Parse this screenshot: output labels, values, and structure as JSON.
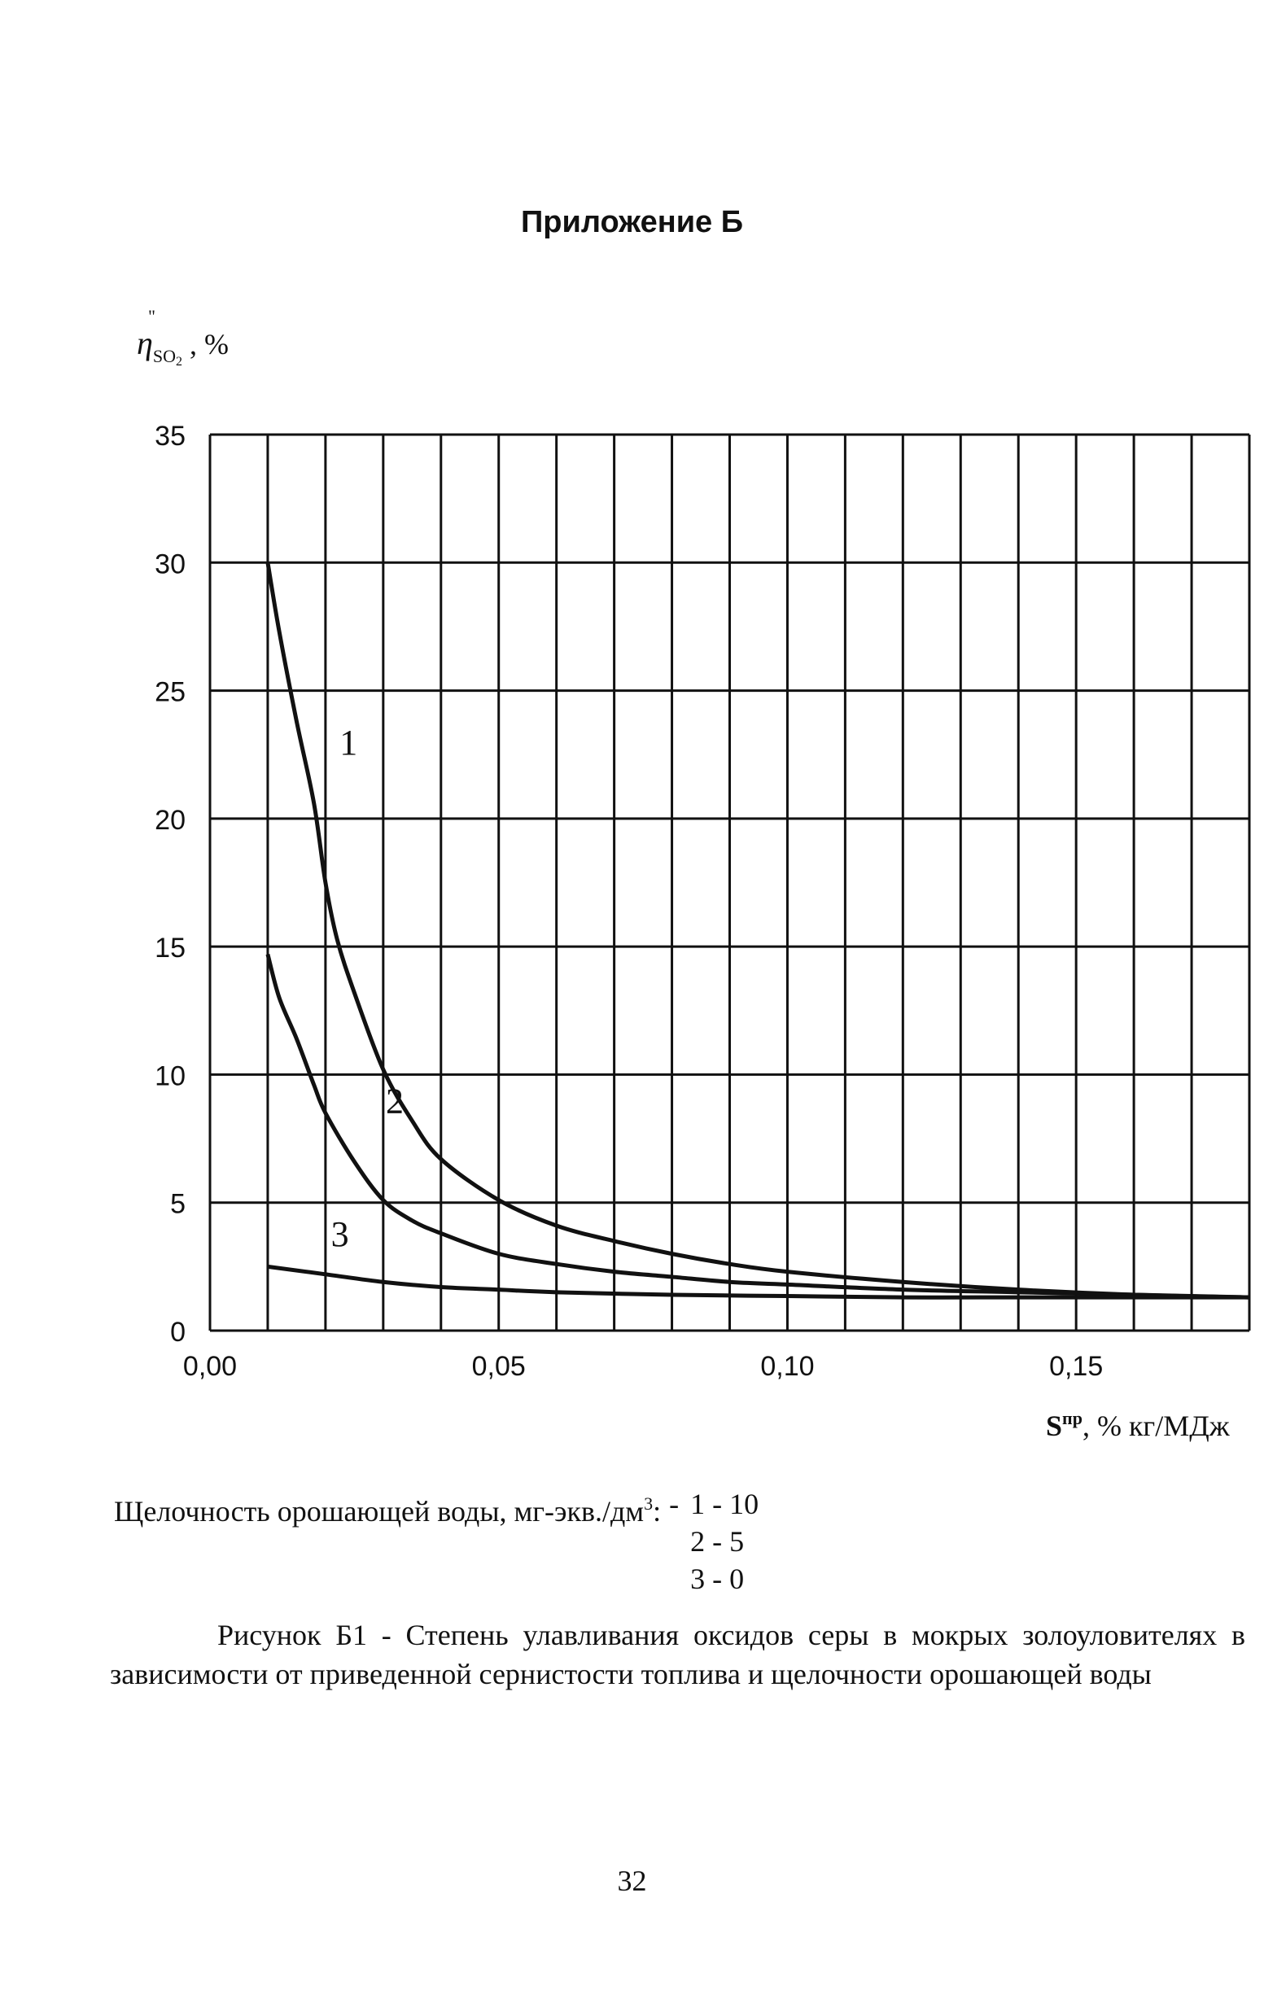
{
  "page": {
    "appendix_title": "Приложение Б",
    "y_axis": {
      "symbol": "η",
      "accent": "\"",
      "subscript": "SO",
      "subscript_index": "2",
      "suffix": " , %"
    },
    "x_axis": {
      "symbol": "S",
      "superscript": "пр",
      "suffix": ", % кг/МДж"
    },
    "legend": {
      "title": "Щелочность орошающей воды, мг-экв./дм",
      "title_superscript": "3",
      "title_colon": ":",
      "dash": "-",
      "entries": [
        "1 - 10",
        "2 - 5",
        "3 - 0"
      ]
    },
    "caption": "Рисунок Б1 - Степень улавливания оксидов серы в мокрых золоуловителях в зависимости от приведенной сернистости топлива и щелочности орошающей воды",
    "page_number": "32"
  },
  "chart_data": {
    "type": "line",
    "xlim": [
      0.0,
      0.18
    ],
    "ylim": [
      0,
      35
    ],
    "x_ticks": [
      0.0,
      0.05,
      0.1,
      0.15
    ],
    "x_tick_labels": [
      "0,00",
      "0,05",
      "0,10",
      "0,15"
    ],
    "y_ticks": [
      0,
      5,
      10,
      15,
      20,
      25,
      30,
      35
    ],
    "y_tick_labels": [
      "0",
      "5",
      "10",
      "15",
      "20",
      "25",
      "30",
      "35"
    ],
    "grid": true,
    "x_grid_step": 0.01,
    "y_grid_step": 5,
    "series": [
      {
        "name": "1",
        "x": [
          0.01,
          0.012,
          0.015,
          0.018,
          0.02,
          0.022,
          0.025,
          0.03,
          0.035,
          0.04,
          0.05,
          0.06,
          0.07,
          0.08,
          0.09,
          0.1,
          0.12,
          0.14,
          0.16,
          0.18
        ],
        "y": [
          30.0,
          27.3,
          23.8,
          20.6,
          17.5,
          15.3,
          13.2,
          10.2,
          8.2,
          6.7,
          5.1,
          4.1,
          3.5,
          3.0,
          2.6,
          2.3,
          1.9,
          1.6,
          1.4,
          1.3
        ]
      },
      {
        "name": "2",
        "x": [
          0.01,
          0.012,
          0.015,
          0.018,
          0.02,
          0.025,
          0.03,
          0.035,
          0.04,
          0.05,
          0.06,
          0.07,
          0.08,
          0.09,
          0.1,
          0.12,
          0.14,
          0.16,
          0.18
        ],
        "y": [
          14.7,
          13.0,
          11.4,
          9.6,
          8.5,
          6.6,
          5.1,
          4.3,
          3.8,
          3.0,
          2.6,
          2.3,
          2.1,
          1.9,
          1.8,
          1.6,
          1.5,
          1.4,
          1.3
        ]
      },
      {
        "name": "3",
        "x": [
          0.01,
          0.02,
          0.03,
          0.04,
          0.05,
          0.06,
          0.08,
          0.1,
          0.12,
          0.14,
          0.16,
          0.18
        ],
        "y": [
          2.5,
          2.2,
          1.9,
          1.7,
          1.6,
          1.5,
          1.4,
          1.35,
          1.3,
          1.3,
          1.3,
          1.3
        ]
      }
    ],
    "curve_labels": [
      {
        "text": "1",
        "series": "1"
      },
      {
        "text": "2",
        "series": "2"
      },
      {
        "text": "3",
        "series": "3"
      }
    ]
  }
}
